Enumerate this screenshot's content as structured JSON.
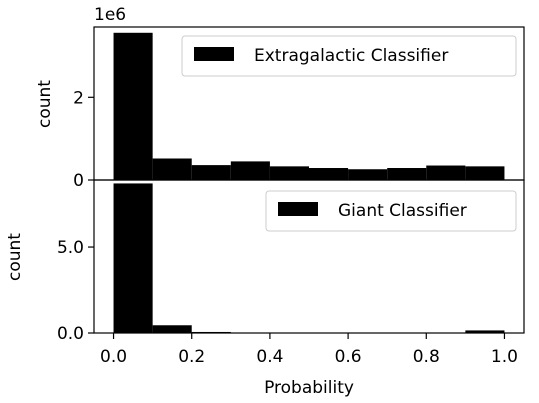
{
  "chart_data": [
    {
      "type": "bar",
      "histogram": true,
      "bin_edges": [
        0.0,
        0.1,
        0.2,
        0.3,
        0.4,
        0.5,
        0.6,
        0.7,
        0.8,
        0.9,
        1.0
      ],
      "values": [
        3560000,
        520000,
        360000,
        450000,
        330000,
        290000,
        260000,
        290000,
        350000,
        330000
      ],
      "ylabel": "count",
      "y_offset_text": "1e6",
      "ylim": [
        0,
        3.7
      ],
      "y_scale_factor": 1000000,
      "y_ticks": [
        0,
        2
      ],
      "y_tick_labels": [
        "0",
        "2"
      ],
      "legend": {
        "label": "Extragalactic Classifier",
        "position": "top-right"
      },
      "color": "#000000"
    },
    {
      "type": "bar",
      "histogram": true,
      "bin_edges": [
        0.0,
        0.1,
        0.2,
        0.3,
        0.4,
        0.5,
        0.6,
        0.7,
        0.8,
        0.9,
        1.0
      ],
      "values": [
        8.7,
        0.45,
        0.06,
        0.02,
        0.01,
        0.01,
        0.01,
        0.01,
        0.02,
        0.15
      ],
      "ylabel": "count",
      "ylim": [
        0,
        8.9
      ],
      "y_ticks": [
        0,
        5
      ],
      "y_tick_labels": [
        "0.0",
        "5.0"
      ],
      "legend": {
        "label": "Giant Classifier",
        "position": "top-right"
      },
      "color": "#000000"
    }
  ],
  "x_axis": {
    "label": "Probability",
    "xlim": [
      -0.05,
      1.05
    ],
    "ticks": [
      0.0,
      0.2,
      0.4,
      0.6,
      0.8,
      1.0
    ],
    "tick_labels": [
      "0.0",
      "0.2",
      "0.4",
      "0.6",
      "0.8",
      "1.0"
    ]
  }
}
